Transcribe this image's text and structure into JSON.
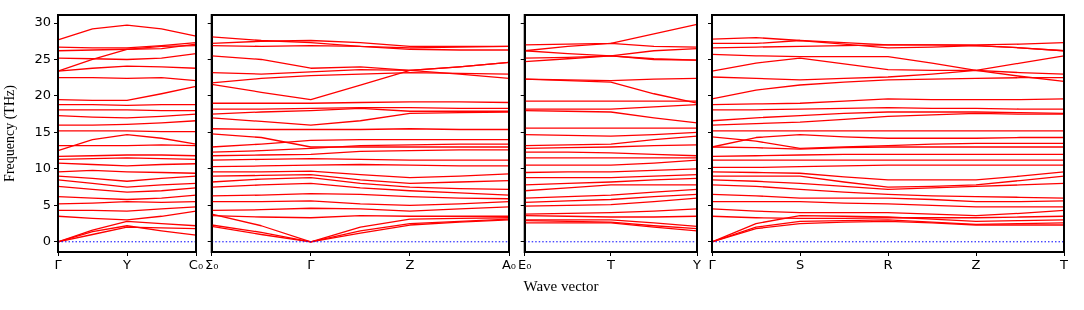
{
  "chart_data": [
    {
      "type": "line",
      "ylabel": "Frequency (THz)",
      "categories": [
        "Γ",
        null,
        "Y",
        null,
        "C₀"
      ],
      "ylim": [
        -1.4,
        31.1
      ],
      "yticks": [
        0,
        5,
        10,
        15,
        20,
        25,
        30
      ],
      "grid": false,
      "legend": false,
      "line_style": "solid",
      "ref_lines": [
        {
          "axis": "y",
          "value": 0,
          "color": "#0000ff",
          "line_style": "dotted"
        }
      ],
      "series": [
        {
          "color": "#ff0000",
          "values": [
            27.7,
            29.2,
            29.7,
            29.2,
            28.2
          ]
        },
        {
          "color": "#ff0000",
          "values": [
            26.7,
            26.6,
            26.6,
            26.9,
            27.3
          ]
        },
        {
          "color": "#ff0000",
          "values": [
            26.2,
            26.3,
            26.4,
            26.8,
            26.9
          ]
        },
        {
          "color": "#ff0000",
          "values": [
            23.4,
            25.0,
            26.4,
            26.5,
            27.1
          ]
        },
        {
          "color": "#ff0000",
          "values": [
            25.2,
            25.1,
            25.0,
            25.2,
            25.8
          ]
        },
        {
          "color": "#ff0000",
          "values": [
            23.4,
            23.8,
            24.1,
            24.0,
            23.8
          ]
        },
        {
          "color": "#ff0000",
          "values": [
            22.5,
            22.5,
            22.4,
            22.5,
            22.1
          ]
        },
        {
          "color": "#ff0000",
          "values": [
            19.5,
            19.4,
            19.4,
            20.3,
            21.3
          ]
        },
        {
          "color": "#ff0000",
          "values": [
            18.8,
            18.8,
            18.7,
            18.8,
            18.8
          ]
        },
        {
          "color": "#ff0000",
          "values": [
            18.1,
            18.1,
            18.1,
            18.0,
            18.0
          ]
        },
        {
          "color": "#ff0000",
          "values": [
            17.3,
            17.1,
            17.0,
            17.2,
            17.5
          ]
        },
        {
          "color": "#ff0000",
          "values": [
            16.0,
            16.0,
            16.1,
            16.3,
            16.6
          ]
        },
        {
          "color": "#ff0000",
          "values": [
            15.2,
            15.2,
            15.2,
            15.1,
            15.1
          ]
        },
        {
          "color": "#ff0000",
          "values": [
            12.5,
            14.0,
            14.7,
            14.2,
            13.4
          ]
        },
        {
          "color": "#ff0000",
          "values": [
            13.2,
            13.2,
            13.2,
            13.3,
            13.2
          ]
        },
        {
          "color": "#ff0000",
          "values": [
            11.7,
            11.8,
            11.9,
            11.9,
            11.8
          ]
        },
        {
          "color": "#ff0000",
          "values": [
            11.3,
            11.4,
            11.5,
            11.4,
            11.3
          ]
        },
        {
          "color": "#ff0000",
          "values": [
            10.8,
            10.6,
            10.4,
            10.6,
            10.7
          ]
        },
        {
          "color": "#ff0000",
          "values": [
            9.6,
            9.8,
            9.6,
            9.5,
            9.4
          ]
        },
        {
          "color": "#ff0000",
          "values": [
            9.0,
            8.7,
            8.3,
            8.7,
            9.0
          ]
        },
        {
          "color": "#ff0000",
          "values": [
            8.5,
            8.0,
            7.5,
            7.8,
            8.0
          ]
        },
        {
          "color": "#ff0000",
          "values": [
            7.6,
            7.2,
            6.8,
            7.0,
            7.4
          ]
        },
        {
          "color": "#ff0000",
          "values": [
            6.2,
            6.0,
            5.8,
            6.0,
            6.4
          ]
        },
        {
          "color": "#ff0000",
          "values": [
            5.2,
            5.3,
            5.5,
            5.4,
            5.5
          ]
        },
        {
          "color": "#ff0000",
          "values": [
            4.3,
            4.3,
            4.2,
            4.5,
            4.8
          ]
        },
        {
          "color": "#ff0000",
          "values": [
            3.5,
            3.2,
            3.0,
            3.5,
            4.2
          ]
        },
        {
          "color": "#ff0000",
          "values": [
            0,
            1.6,
            2.8,
            2.5,
            2.2
          ]
        },
        {
          "color": "#ff0000",
          "values": [
            0,
            1.4,
            2.2,
            1.5,
            0.9
          ]
        },
        {
          "color": "#ff0000",
          "values": [
            0,
            1.0,
            2.0,
            1.9,
            1.8
          ]
        }
      ]
    },
    {
      "type": "line",
      "categories": [
        "Σ₀",
        null,
        "Γ",
        null,
        "Z",
        null,
        "A₀"
      ],
      "ylim": [
        -1.4,
        31.1
      ],
      "yticks": [
        0,
        5,
        10,
        15,
        20,
        25,
        30
      ],
      "tick_labels": "x",
      "grid": false,
      "legend": false,
      "line_style": "solid",
      "ref_lines": [
        {
          "axis": "y",
          "value": 0,
          "color": "#0000ff",
          "line_style": "dotted"
        }
      ],
      "series": [
        {
          "color": "#ff0000",
          "values": [
            28.1,
            27.6,
            27.3,
            26.8,
            26.6,
            26.7,
            26.8
          ]
        },
        {
          "color": "#ff0000",
          "values": [
            27.2,
            27.5,
            27.6,
            27.3,
            26.8,
            26.8,
            26.8
          ]
        },
        {
          "color": "#ff0000",
          "values": [
            26.9,
            26.8,
            26.9,
            26.8,
            26.4,
            26.3,
            26.3
          ]
        },
        {
          "color": "#ff0000",
          "values": [
            25.5,
            25.0,
            23.8,
            24.0,
            23.5,
            24.0,
            24.6
          ]
        },
        {
          "color": "#ff0000",
          "values": [
            23.2,
            23.0,
            23.3,
            23.6,
            23.5,
            23.0,
            22.4
          ]
        },
        {
          "color": "#ff0000",
          "values": [
            21.6,
            20.5,
            19.5,
            21.5,
            23.5,
            24.0,
            24.6
          ]
        },
        {
          "color": "#ff0000",
          "values": [
            21.8,
            22.4,
            22.8,
            23.0,
            23.2,
            23.1,
            23.0
          ]
        },
        {
          "color": "#ff0000",
          "values": [
            19.0,
            19.0,
            19.0,
            19.1,
            19.2,
            19.2,
            19.1
          ]
        },
        {
          "color": "#ff0000",
          "values": [
            18.2,
            18.2,
            18.3,
            18.4,
            18.4,
            18.3,
            18.3
          ]
        },
        {
          "color": "#ff0000",
          "values": [
            17.5,
            17.8,
            18.0,
            18.3,
            17.9,
            17.9,
            17.9
          ]
        },
        {
          "color": "#ff0000",
          "values": [
            17.0,
            16.5,
            16.0,
            16.6,
            17.6,
            17.7,
            17.8
          ]
        },
        {
          "color": "#ff0000",
          "values": [
            15.5,
            15.4,
            15.4,
            15.4,
            15.5,
            15.4,
            15.4
          ]
        },
        {
          "color": "#ff0000",
          "values": [
            14.8,
            14.3,
            13.0,
            13.0,
            13.0,
            13.0,
            13.0
          ]
        },
        {
          "color": "#ff0000",
          "values": [
            13.0,
            13.4,
            13.9,
            14.0,
            14.0,
            14.0,
            14.0
          ]
        },
        {
          "color": "#ff0000",
          "values": [
            12.3,
            12.5,
            12.8,
            13.2,
            13.3,
            13.4,
            13.4
          ]
        },
        {
          "color": "#ff0000",
          "values": [
            11.8,
            11.9,
            12.0,
            12.4,
            12.5,
            12.6,
            12.6
          ]
        },
        {
          "color": "#ff0000",
          "values": [
            11.2,
            11.3,
            11.4,
            11.3,
            11.2,
            11.2,
            11.2
          ]
        },
        {
          "color": "#ff0000",
          "values": [
            10.3,
            10.4,
            10.5,
            10.6,
            10.5,
            10.4,
            10.4
          ]
        },
        {
          "color": "#ff0000",
          "values": [
            9.6,
            9.6,
            9.7,
            9.2,
            8.8,
            9.0,
            9.3
          ]
        },
        {
          "color": "#ff0000",
          "values": [
            9.0,
            9.1,
            9.2,
            8.5,
            8.0,
            8.2,
            8.4
          ]
        },
        {
          "color": "#ff0000",
          "values": [
            8.2,
            8.6,
            8.8,
            8.0,
            7.5,
            7.3,
            7.2
          ]
        },
        {
          "color": "#ff0000",
          "values": [
            7.5,
            7.8,
            8.0,
            7.4,
            7.0,
            6.7,
            6.4
          ]
        },
        {
          "color": "#ff0000",
          "values": [
            6.3,
            6.4,
            6.6,
            6.5,
            6.2,
            6.0,
            5.9
          ]
        },
        {
          "color": "#ff0000",
          "values": [
            5.5,
            5.5,
            5.6,
            5.2,
            5.0,
            5.2,
            5.5
          ]
        },
        {
          "color": "#ff0000",
          "values": [
            4.3,
            4.4,
            4.6,
            4.5,
            4.2,
            4.5,
            4.8
          ]
        },
        {
          "color": "#ff0000",
          "values": [
            3.6,
            3.4,
            3.3,
            3.6,
            3.5,
            3.5,
            3.5
          ]
        },
        {
          "color": "#ff0000",
          "values": [
            3.8,
            2.2,
            0,
            2.0,
            3.1,
            3.2,
            3.3
          ]
        },
        {
          "color": "#ff0000",
          "values": [
            2.3,
            1.3,
            0,
            1.5,
            2.5,
            2.8,
            3.1
          ]
        },
        {
          "color": "#ff0000",
          "values": [
            2.1,
            1.0,
            0,
            1.2,
            2.3,
            2.7,
            3.0
          ]
        }
      ]
    },
    {
      "type": "line",
      "xlabel": "Wave vector",
      "categories": [
        "E₀",
        null,
        "T",
        null,
        "Y"
      ],
      "ylim": [
        -1.4,
        31.1
      ],
      "yticks": [
        0,
        5,
        10,
        15,
        20,
        25,
        30
      ],
      "tick_labels": "x",
      "grid": false,
      "legend": false,
      "line_style": "solid",
      "ref_lines": [
        {
          "axis": "y",
          "value": 0,
          "color": "#0000ff",
          "line_style": "dotted"
        }
      ],
      "series": [
        {
          "color": "#ff0000",
          "values": [
            27.0,
            27.1,
            27.2,
            28.5,
            29.8
          ]
        },
        {
          "color": "#ff0000",
          "values": [
            26.2,
            26.8,
            27.2,
            26.8,
            26.7
          ]
        },
        {
          "color": "#ff0000",
          "values": [
            25.2,
            25.3,
            25.5,
            26.2,
            26.5
          ]
        },
        {
          "color": "#ff0000",
          "values": [
            24.7,
            25.1,
            25.5,
            25.0,
            24.9
          ]
        },
        {
          "color": "#ff0000",
          "values": [
            26.2,
            25.8,
            25.5,
            25.1,
            24.9
          ]
        },
        {
          "color": "#ff0000",
          "values": [
            22.3,
            22.2,
            22.1,
            22.3,
            22.4
          ]
        },
        {
          "color": "#ff0000",
          "values": [
            22.3,
            22.1,
            21.9,
            20.3,
            19.0
          ]
        },
        {
          "color": "#ff0000",
          "values": [
            19.3,
            19.3,
            19.3,
            19.3,
            19.3
          ]
        },
        {
          "color": "#ff0000",
          "values": [
            18.2,
            18.2,
            18.2,
            18.5,
            18.8
          ]
        },
        {
          "color": "#ff0000",
          "values": [
            18.0,
            17.9,
            17.8,
            17.0,
            16.3
          ]
        },
        {
          "color": "#ff0000",
          "values": [
            15.6,
            15.6,
            15.6,
            15.6,
            15.6
          ]
        },
        {
          "color": "#ff0000",
          "values": [
            14.7,
            14.6,
            14.5,
            14.7,
            15.0
          ]
        },
        {
          "color": "#ff0000",
          "values": [
            13.2,
            13.3,
            13.4,
            14.0,
            14.5
          ]
        },
        {
          "color": "#ff0000",
          "values": [
            12.8,
            12.9,
            13.0,
            13.2,
            13.3
          ]
        },
        {
          "color": "#ff0000",
          "values": [
            12.3,
            12.3,
            12.2,
            12.0,
            11.8
          ]
        },
        {
          "color": "#ff0000",
          "values": [
            11.5,
            11.5,
            11.5,
            11.5,
            11.5
          ]
        },
        {
          "color": "#ff0000",
          "values": [
            10.5,
            10.5,
            10.5,
            10.8,
            11.2
          ]
        },
        {
          "color": "#ff0000",
          "values": [
            9.5,
            9.6,
            9.6,
            9.8,
            10.0
          ]
        },
        {
          "color": "#ff0000",
          "values": [
            8.8,
            8.8,
            8.8,
            9.0,
            9.2
          ]
        },
        {
          "color": "#ff0000",
          "values": [
            7.8,
            8.0,
            8.2,
            8.5,
            8.7
          ]
        },
        {
          "color": "#ff0000",
          "values": [
            7.0,
            7.4,
            7.8,
            7.8,
            7.8
          ]
        },
        {
          "color": "#ff0000",
          "values": [
            6.0,
            6.2,
            6.4,
            6.8,
            7.2
          ]
        },
        {
          "color": "#ff0000",
          "values": [
            5.4,
            5.6,
            5.8,
            6.2,
            6.5
          ]
        },
        {
          "color": "#ff0000",
          "values": [
            4.9,
            5.0,
            5.1,
            5.5,
            6.0
          ]
        },
        {
          "color": "#ff0000",
          "values": [
            3.8,
            3.9,
            4.0,
            4.2,
            4.5
          ]
        },
        {
          "color": "#ff0000",
          "values": [
            3.6,
            3.5,
            3.4,
            3.4,
            3.5
          ]
        },
        {
          "color": "#ff0000",
          "values": [
            3.0,
            3.0,
            3.0,
            2.6,
            2.1
          ]
        },
        {
          "color": "#ff0000",
          "values": [
            2.9,
            2.8,
            2.7,
            2.2,
            1.8
          ]
        },
        {
          "color": "#ff0000",
          "values": [
            2.6,
            2.6,
            2.6,
            2.0,
            1.5
          ]
        }
      ]
    },
    {
      "type": "line",
      "categories": [
        "Γ",
        null,
        "S",
        null,
        "R",
        null,
        "Z",
        null,
        "T"
      ],
      "ylim": [
        -1.4,
        31.1
      ],
      "yticks": [
        0,
        5,
        10,
        15,
        20,
        25,
        30
      ],
      "tick_labels": "x",
      "grid": false,
      "legend": false,
      "line_style": "solid",
      "ref_lines": [
        {
          "axis": "y",
          "value": 0,
          "color": "#0000ff",
          "line_style": "dotted"
        }
      ],
      "series": [
        {
          "color": "#ff0000",
          "values": [
            27.8,
            28.0,
            27.6,
            27.3,
            27.0,
            27.0,
            27.0,
            27.1,
            27.3
          ]
        },
        {
          "color": "#ff0000",
          "values": [
            27.2,
            27.2,
            27.6,
            27.1,
            26.6,
            26.7,
            26.9,
            26.6,
            26.2
          ]
        },
        {
          "color": "#ff0000",
          "values": [
            26.6,
            26.7,
            26.8,
            26.9,
            27.0,
            27.0,
            26.9,
            26.6,
            26.2
          ]
        },
        {
          "color": "#ff0000",
          "values": [
            25.7,
            25.5,
            25.4,
            25.4,
            25.4,
            24.5,
            23.5,
            22.7,
            22.0
          ]
        },
        {
          "color": "#ff0000",
          "values": [
            23.4,
            24.5,
            25.2,
            24.4,
            23.6,
            23.5,
            23.5,
            24.5,
            25.5
          ]
        },
        {
          "color": "#ff0000",
          "values": [
            22.6,
            22.4,
            22.2,
            22.4,
            22.6,
            23.0,
            23.5,
            23.2,
            23.0
          ]
        },
        {
          "color": "#ff0000",
          "values": [
            19.6,
            20.8,
            21.5,
            21.9,
            22.2,
            22.3,
            22.4,
            22.5,
            22.5
          ]
        },
        {
          "color": "#ff0000",
          "values": [
            18.8,
            18.9,
            19.0,
            19.3,
            19.6,
            19.5,
            19.5,
            19.5,
            19.6
          ]
        },
        {
          "color": "#ff0000",
          "values": [
            18.1,
            18.1,
            18.2,
            18.3,
            18.4,
            18.3,
            18.3,
            18.2,
            18.2
          ]
        },
        {
          "color": "#ff0000",
          "values": [
            16.6,
            17.0,
            17.3,
            17.6,
            17.8,
            17.8,
            17.8,
            17.7,
            17.6
          ]
        },
        {
          "color": "#ff0000",
          "values": [
            16.0,
            16.2,
            16.4,
            16.8,
            17.2,
            17.4,
            17.6,
            17.5,
            17.5
          ]
        },
        {
          "color": "#ff0000",
          "values": [
            15.2,
            15.2,
            15.2,
            15.2,
            15.2,
            15.2,
            15.2,
            15.2,
            15.2
          ]
        },
        {
          "color": "#ff0000",
          "values": [
            13.0,
            14.3,
            14.7,
            14.4,
            14.2,
            14.2,
            14.2,
            14.3,
            14.3
          ]
        },
        {
          "color": "#ff0000",
          "values": [
            14.4,
            13.8,
            12.8,
            13.0,
            13.2,
            13.4,
            13.5,
            13.5,
            13.5
          ]
        },
        {
          "color": "#ff0000",
          "values": [
            13.0,
            12.9,
            12.7,
            12.9,
            13.0,
            13.0,
            13.0,
            13.0,
            13.0
          ]
        },
        {
          "color": "#ff0000",
          "values": [
            11.7,
            11.8,
            11.9,
            12.0,
            12.0,
            12.0,
            12.0,
            12.0,
            12.0
          ]
        },
        {
          "color": "#ff0000",
          "values": [
            11.2,
            11.2,
            11.2,
            11.2,
            11.2,
            11.2,
            11.2,
            11.2,
            11.2
          ]
        },
        {
          "color": "#ff0000",
          "values": [
            10.2,
            10.2,
            10.3,
            10.4,
            10.5,
            10.5,
            10.5,
            10.5,
            10.5
          ]
        },
        {
          "color": "#ff0000",
          "values": [
            9.6,
            9.5,
            9.4,
            8.9,
            8.5,
            8.5,
            8.5,
            9.0,
            9.6
          ]
        },
        {
          "color": "#ff0000",
          "values": [
            9.0,
            9.0,
            9.0,
            8.2,
            7.5,
            7.6,
            7.8,
            8.4,
            9.0
          ]
        },
        {
          "color": "#ff0000",
          "values": [
            8.5,
            8.3,
            8.0,
            7.6,
            7.2,
            7.4,
            7.6,
            7.8,
            8.0
          ]
        },
        {
          "color": "#ff0000",
          "values": [
            7.8,
            7.6,
            7.2,
            6.8,
            6.5,
            6.3,
            6.2,
            6.1,
            6.0
          ]
        },
        {
          "color": "#ff0000",
          "values": [
            6.5,
            6.3,
            6.0,
            6.0,
            6.0,
            5.8,
            5.5,
            5.5,
            5.6
          ]
        },
        {
          "color": "#ff0000",
          "values": [
            5.5,
            5.5,
            5.5,
            5.3,
            5.2,
            5.0,
            4.8,
            4.8,
            4.8
          ]
        },
        {
          "color": "#ff0000",
          "values": [
            4.5,
            4.2,
            4.0,
            4.0,
            4.0,
            3.8,
            3.6,
            3.9,
            4.3
          ]
        },
        {
          "color": "#ff0000",
          "values": [
            3.5,
            3.3,
            3.2,
            3.2,
            3.3,
            3.3,
            3.3,
            3.4,
            3.5
          ]
        },
        {
          "color": "#ff0000",
          "values": [
            0,
            2.5,
            3.6,
            3.5,
            3.4,
            3.1,
            2.8,
            2.9,
            3.0
          ]
        },
        {
          "color": "#ff0000",
          "values": [
            0,
            2.0,
            2.8,
            2.9,
            3.0,
            2.7,
            2.4,
            2.5,
            2.6
          ]
        },
        {
          "color": "#ff0000",
          "values": [
            0,
            1.8,
            2.5,
            2.7,
            2.8,
            2.6,
            2.3,
            2.3,
            2.3
          ]
        }
      ]
    }
  ]
}
